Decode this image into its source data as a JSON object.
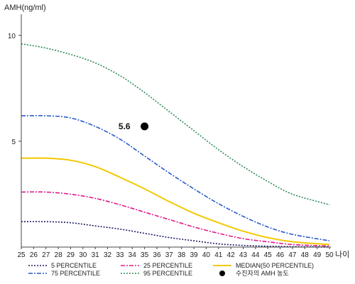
{
  "chart_data": {
    "type": "line",
    "ylabel": "AMH(ng/ml)",
    "xlabel": "나이",
    "xlim": [
      25,
      50
    ],
    "ylim": [
      0,
      11
    ],
    "x_ticks": [
      25,
      26,
      27,
      28,
      29,
      30,
      31,
      32,
      33,
      34,
      35,
      36,
      37,
      38,
      39,
      40,
      41,
      42,
      43,
      44,
      45,
      46,
      47,
      48,
      49,
      50
    ],
    "y_ticks": [
      5,
      10
    ],
    "grid": false,
    "legend_position": "bottom",
    "x": [
      25,
      27,
      29,
      31,
      33,
      35,
      37,
      39,
      41,
      43,
      45,
      47,
      50
    ],
    "series": [
      {
        "name": "5 PERCENTILE",
        "color": "#1a1a66",
        "dash": "2,2",
        "values": [
          1.2,
          1.2,
          1.15,
          1.0,
          0.85,
          0.65,
          0.45,
          0.3,
          0.15,
          0.08,
          0.04,
          0.02,
          0.0
        ]
      },
      {
        "name": "25 PERCENTILE",
        "color": "#e01a8c",
        "dash": "6,2,2,2",
        "values": [
          2.6,
          2.6,
          2.5,
          2.3,
          2.0,
          1.65,
          1.3,
          0.95,
          0.65,
          0.4,
          0.25,
          0.12,
          0.05
        ]
      },
      {
        "name": "MEDIAN(50 PERCENTILE)",
        "color": "#f5c800",
        "dash": "",
        "values": [
          4.2,
          4.2,
          4.1,
          3.8,
          3.3,
          2.75,
          2.15,
          1.6,
          1.15,
          0.75,
          0.45,
          0.25,
          0.12
        ]
      },
      {
        "name": "75 PERCENTILE",
        "color": "#2a5cc8",
        "dash": "6,2,2,2",
        "values": [
          6.2,
          6.2,
          6.1,
          5.7,
          5.1,
          4.3,
          3.5,
          2.75,
          2.05,
          1.45,
          0.95,
          0.6,
          0.3
        ]
      },
      {
        "name": "95 PERCENTILE",
        "color": "#2e8b57",
        "dash": "2,2",
        "values": [
          9.6,
          9.4,
          9.1,
          8.7,
          8.1,
          7.3,
          6.4,
          5.5,
          4.6,
          3.8,
          3.1,
          2.5,
          2.0
        ]
      }
    ],
    "annotation": {
      "x": 35,
      "y": 5.7,
      "label": "5.6",
      "legend": "수진자의 AMH 농도",
      "color": "#000000"
    }
  }
}
